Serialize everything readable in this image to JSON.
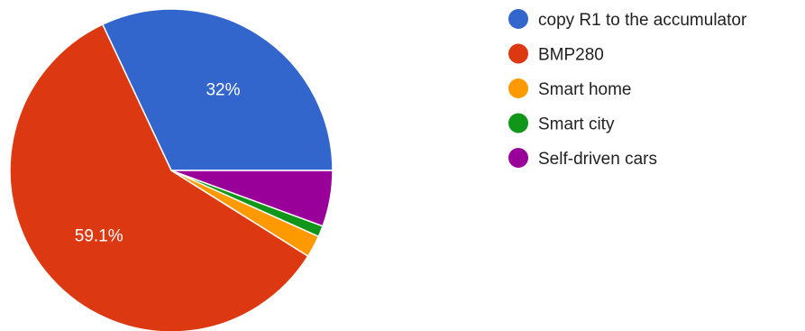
{
  "chart_data": {
    "type": "pie",
    "title": "",
    "slices": [
      {
        "label": "copy R1 to the accumulator",
        "value": 32.0,
        "color": "#3366cc",
        "display_label": "32%"
      },
      {
        "label": "BMP280",
        "value": 59.1,
        "color": "#dc3912",
        "display_label": "59.1%"
      },
      {
        "label": "Smart home",
        "value": 2.2,
        "color": "#ff9900",
        "display_label": ""
      },
      {
        "label": "Smart city",
        "value": 1.1,
        "color": "#109618",
        "display_label": ""
      },
      {
        "label": "Self-driven cars",
        "value": 5.6,
        "color": "#990099",
        "display_label": ""
      }
    ],
    "legend_position": "right",
    "direction": "counterclockwise",
    "start": "right"
  }
}
